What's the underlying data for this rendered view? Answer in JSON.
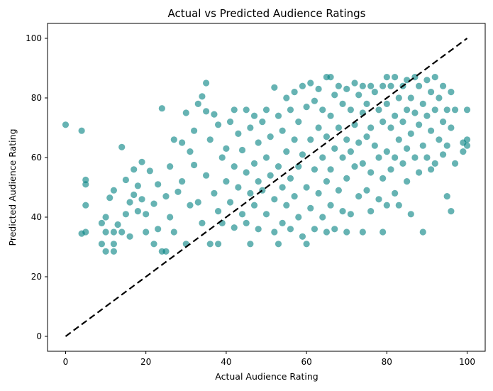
{
  "colors": {
    "points": "#008080",
    "diagonal": "#000000",
    "axes": "#000000"
  },
  "chart_data": {
    "type": "scatter",
    "title": "Actual vs Predicted Audience Ratings",
    "xlabel": "Actual Audience Rating",
    "ylabel": "Predicted Audience Rating",
    "xlim": [
      -4.5,
      104.5
    ],
    "ylim": [
      -5,
      105
    ],
    "xticks": [
      0,
      20,
      40,
      60,
      80,
      100
    ],
    "yticks": [
      0,
      20,
      40,
      60,
      80,
      100
    ],
    "grid": false,
    "legend": "none",
    "reference_line": {
      "style": "dashed",
      "from": [
        0,
        0
      ],
      "to": [
        100,
        100
      ]
    },
    "series": [
      {
        "marker": "circle",
        "alpha": 0.6,
        "points": [
          [
            0,
            71
          ],
          [
            4,
            69
          ],
          [
            5,
            52.5
          ],
          [
            5,
            51
          ],
          [
            5,
            44
          ],
          [
            4,
            34.5
          ],
          [
            5,
            35
          ],
          [
            9,
            38
          ],
          [
            9,
            31
          ],
          [
            10,
            35
          ],
          [
            10,
            28.5
          ],
          [
            10,
            40
          ],
          [
            11,
            46.5
          ],
          [
            12,
            49
          ],
          [
            12,
            31
          ],
          [
            12,
            28.5
          ],
          [
            12,
            35
          ],
          [
            13,
            37.5
          ],
          [
            14,
            63.5
          ],
          [
            14,
            35
          ],
          [
            15,
            52.5
          ],
          [
            15,
            41
          ],
          [
            16,
            45
          ],
          [
            16,
            33.5
          ],
          [
            17,
            56
          ],
          [
            17,
            47.5
          ],
          [
            18,
            50.5
          ],
          [
            18,
            42
          ],
          [
            19,
            58.5
          ],
          [
            19,
            46
          ],
          [
            20,
            41
          ],
          [
            20,
            35
          ],
          [
            21,
            55.5
          ],
          [
            22,
            31
          ],
          [
            22,
            44.5
          ],
          [
            23,
            51
          ],
          [
            23,
            36
          ],
          [
            24,
            76.5
          ],
          [
            24,
            28.5
          ],
          [
            25,
            28.5
          ],
          [
            25,
            47
          ],
          [
            26,
            57
          ],
          [
            26,
            40
          ],
          [
            27,
            66
          ],
          [
            27,
            35
          ],
          [
            28,
            48.5
          ],
          [
            29,
            65
          ],
          [
            29,
            52
          ],
          [
            30,
            31
          ],
          [
            30,
            75
          ],
          [
            31,
            62
          ],
          [
            31,
            44
          ],
          [
            32,
            69
          ],
          [
            32,
            57.5
          ],
          [
            33,
            78
          ],
          [
            33,
            45
          ],
          [
            34,
            80.5
          ],
          [
            34,
            38
          ],
          [
            35,
            85
          ],
          [
            35,
            75.5
          ],
          [
            35,
            54
          ],
          [
            36,
            66
          ],
          [
            36,
            31
          ],
          [
            37,
            74.5
          ],
          [
            37,
            48
          ],
          [
            38,
            71
          ],
          [
            38,
            42
          ],
          [
            38,
            31
          ],
          [
            39,
            60
          ],
          [
            39,
            38
          ],
          [
            40,
            63
          ],
          [
            40,
            52
          ],
          [
            41,
            72
          ],
          [
            41,
            45
          ],
          [
            42,
            76
          ],
          [
            42,
            57
          ],
          [
            42,
            36.5
          ],
          [
            43,
            68
          ],
          [
            43,
            50
          ],
          [
            44,
            62.5
          ],
          [
            44,
            41
          ],
          [
            45,
            76
          ],
          [
            45,
            55
          ],
          [
            45,
            38
          ],
          [
            46,
            70
          ],
          [
            46,
            48
          ],
          [
            46,
            31
          ],
          [
            47,
            74
          ],
          [
            47,
            58
          ],
          [
            47,
            44
          ],
          [
            48,
            65
          ],
          [
            48,
            52
          ],
          [
            48,
            36
          ],
          [
            49,
            72
          ],
          [
            49,
            49
          ],
          [
            50,
            76
          ],
          [
            50,
            60
          ],
          [
            50,
            41
          ],
          [
            51,
            67
          ],
          [
            51,
            54
          ],
          [
            52,
            83.5
          ],
          [
            52,
            46
          ],
          [
            52,
            35
          ],
          [
            53,
            74
          ],
          [
            53,
            57
          ],
          [
            53,
            31
          ],
          [
            54,
            69
          ],
          [
            54,
            50
          ],
          [
            54,
            38
          ],
          [
            55,
            80
          ],
          [
            55,
            62
          ],
          [
            55,
            44
          ],
          [
            56,
            76
          ],
          [
            56,
            53
          ],
          [
            56,
            36
          ],
          [
            57,
            82
          ],
          [
            57,
            66
          ],
          [
            57,
            47
          ],
          [
            58,
            72
          ],
          [
            58,
            57
          ],
          [
            58,
            40
          ],
          [
            59,
            84
          ],
          [
            59,
            61
          ],
          [
            59,
            33.5
          ],
          [
            60,
            77
          ],
          [
            60,
            50
          ],
          [
            60,
            31
          ],
          [
            61,
            85
          ],
          [
            61,
            66
          ],
          [
            61,
            43
          ],
          [
            62,
            79
          ],
          [
            62,
            56
          ],
          [
            62,
            36
          ],
          [
            63,
            83
          ],
          [
            63,
            70
          ],
          [
            63,
            48
          ],
          [
            64,
            76
          ],
          [
            64,
            60
          ],
          [
            64,
            40
          ],
          [
            65,
            87
          ],
          [
            65,
            67
          ],
          [
            65,
            52
          ],
          [
            65,
            35
          ],
          [
            66,
            87
          ],
          [
            66,
            74
          ],
          [
            66,
            56
          ],
          [
            66,
            44
          ],
          [
            67,
            81
          ],
          [
            67,
            63
          ],
          [
            67,
            36
          ],
          [
            68,
            84
          ],
          [
            68,
            70
          ],
          [
            68,
            49
          ],
          [
            69,
            78
          ],
          [
            69,
            60
          ],
          [
            69,
            42
          ],
          [
            70,
            83
          ],
          [
            70,
            66
          ],
          [
            70,
            53
          ],
          [
            70,
            35
          ],
          [
            71,
            76
          ],
          [
            71,
            62
          ],
          [
            71,
            41
          ],
          [
            72,
            85
          ],
          [
            72,
            71
          ],
          [
            72,
            57
          ],
          [
            73,
            81
          ],
          [
            73,
            65
          ],
          [
            73,
            47
          ],
          [
            74,
            84
          ],
          [
            74,
            75
          ],
          [
            74,
            58
          ],
          [
            74,
            35
          ],
          [
            75,
            78
          ],
          [
            75,
            67
          ],
          [
            75,
            49
          ],
          [
            76,
            84
          ],
          [
            76,
            70
          ],
          [
            76,
            55
          ],
          [
            76,
            42
          ],
          [
            77,
            82
          ],
          [
            77,
            64
          ],
          [
            78,
            76
          ],
          [
            78,
            60
          ],
          [
            78,
            46
          ],
          [
            79,
            84
          ],
          [
            79,
            72
          ],
          [
            79,
            53
          ],
          [
            79,
            35
          ],
          [
            80,
            87
          ],
          [
            80,
            78
          ],
          [
            80,
            62
          ],
          [
            80,
            44
          ],
          [
            81,
            84
          ],
          [
            81,
            70
          ],
          [
            81,
            56
          ],
          [
            82,
            87
          ],
          [
            82,
            74
          ],
          [
            82,
            60
          ],
          [
            82,
            48
          ],
          [
            83,
            80
          ],
          [
            83,
            66
          ],
          [
            83,
            44
          ],
          [
            84,
            84
          ],
          [
            84,
            72
          ],
          [
            84,
            58
          ],
          [
            85,
            86
          ],
          [
            85,
            76
          ],
          [
            85,
            63
          ],
          [
            85,
            52
          ],
          [
            86,
            80
          ],
          [
            86,
            68
          ],
          [
            86,
            41
          ],
          [
            87,
            87
          ],
          [
            87,
            75
          ],
          [
            87,
            60
          ],
          [
            88,
            84
          ],
          [
            88,
            71
          ],
          [
            88,
            55
          ],
          [
            89,
            78
          ],
          [
            89,
            64
          ],
          [
            89,
            35
          ],
          [
            90,
            86
          ],
          [
            90,
            74
          ],
          [
            90,
            60
          ],
          [
            91,
            82
          ],
          [
            91,
            69
          ],
          [
            91,
            56
          ],
          [
            92,
            87
          ],
          [
            92,
            76
          ],
          [
            92,
            58
          ],
          [
            93,
            80
          ],
          [
            93,
            66
          ],
          [
            94,
            84
          ],
          [
            94,
            72
          ],
          [
            94,
            61
          ],
          [
            95,
            76
          ],
          [
            95,
            64
          ],
          [
            95,
            47
          ],
          [
            96,
            82
          ],
          [
            96,
            70
          ],
          [
            96,
            42
          ],
          [
            97,
            76
          ],
          [
            97,
            58
          ],
          [
            99,
            65
          ],
          [
            99,
            62
          ],
          [
            100,
            76
          ],
          [
            100,
            66
          ],
          [
            100,
            64
          ]
        ]
      }
    ]
  }
}
